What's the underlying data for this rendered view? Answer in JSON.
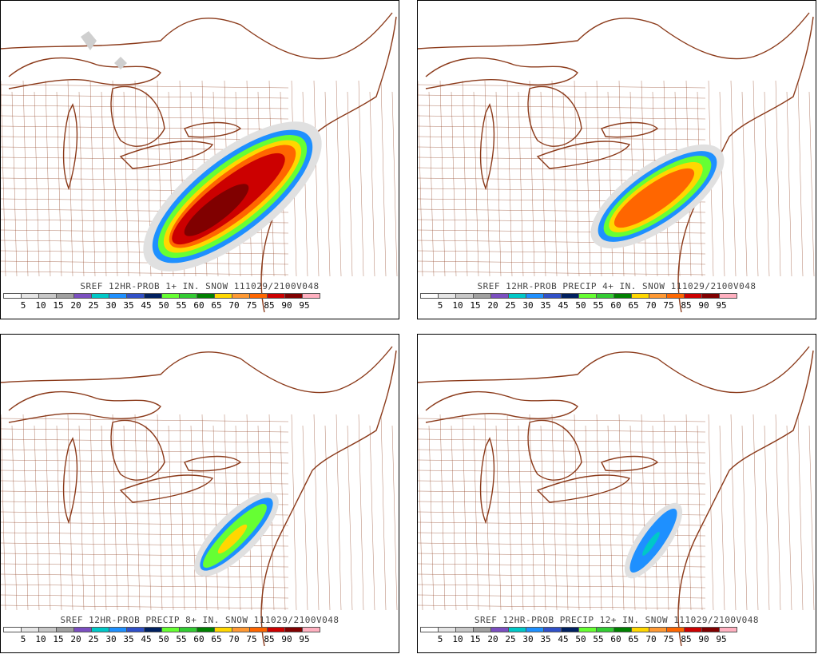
{
  "panels": [
    {
      "title": "SREF 12HR-PROB 1+ IN. SNOW 111029/2100V048"
    },
    {
      "title": "SREF 12HR-PROB PRECIP 4+ IN. SNOW 111029/2100V048"
    },
    {
      "title": "SREF 12HR-PROB PRECIP 8+ IN. SNOW 111029/2100V048"
    },
    {
      "title": "SREF 12HR-PROB PRECIP 12+ IN. SNOW 111029/2100V048"
    }
  ],
  "legend": {
    "labels": [
      "5",
      "10",
      "15",
      "20",
      "25",
      "30",
      "35",
      "45",
      "50",
      "55",
      "60",
      "65",
      "70",
      "75",
      "85",
      "90",
      "95"
    ],
    "colors": [
      "#ffffff",
      "#e6e6e6",
      "#c8c8c8",
      "#a0a0a0",
      "#7b4fc0",
      "#00c8c8",
      "#1e90ff",
      "#3050c8",
      "#002060",
      "#66ff33",
      "#33cc33",
      "#008000",
      "#ffd700",
      "#ff9933",
      "#ff6600",
      "#cc0000",
      "#800000",
      "#ffb0c0"
    ]
  },
  "colors": {
    "border": "#8b3a1a"
  }
}
